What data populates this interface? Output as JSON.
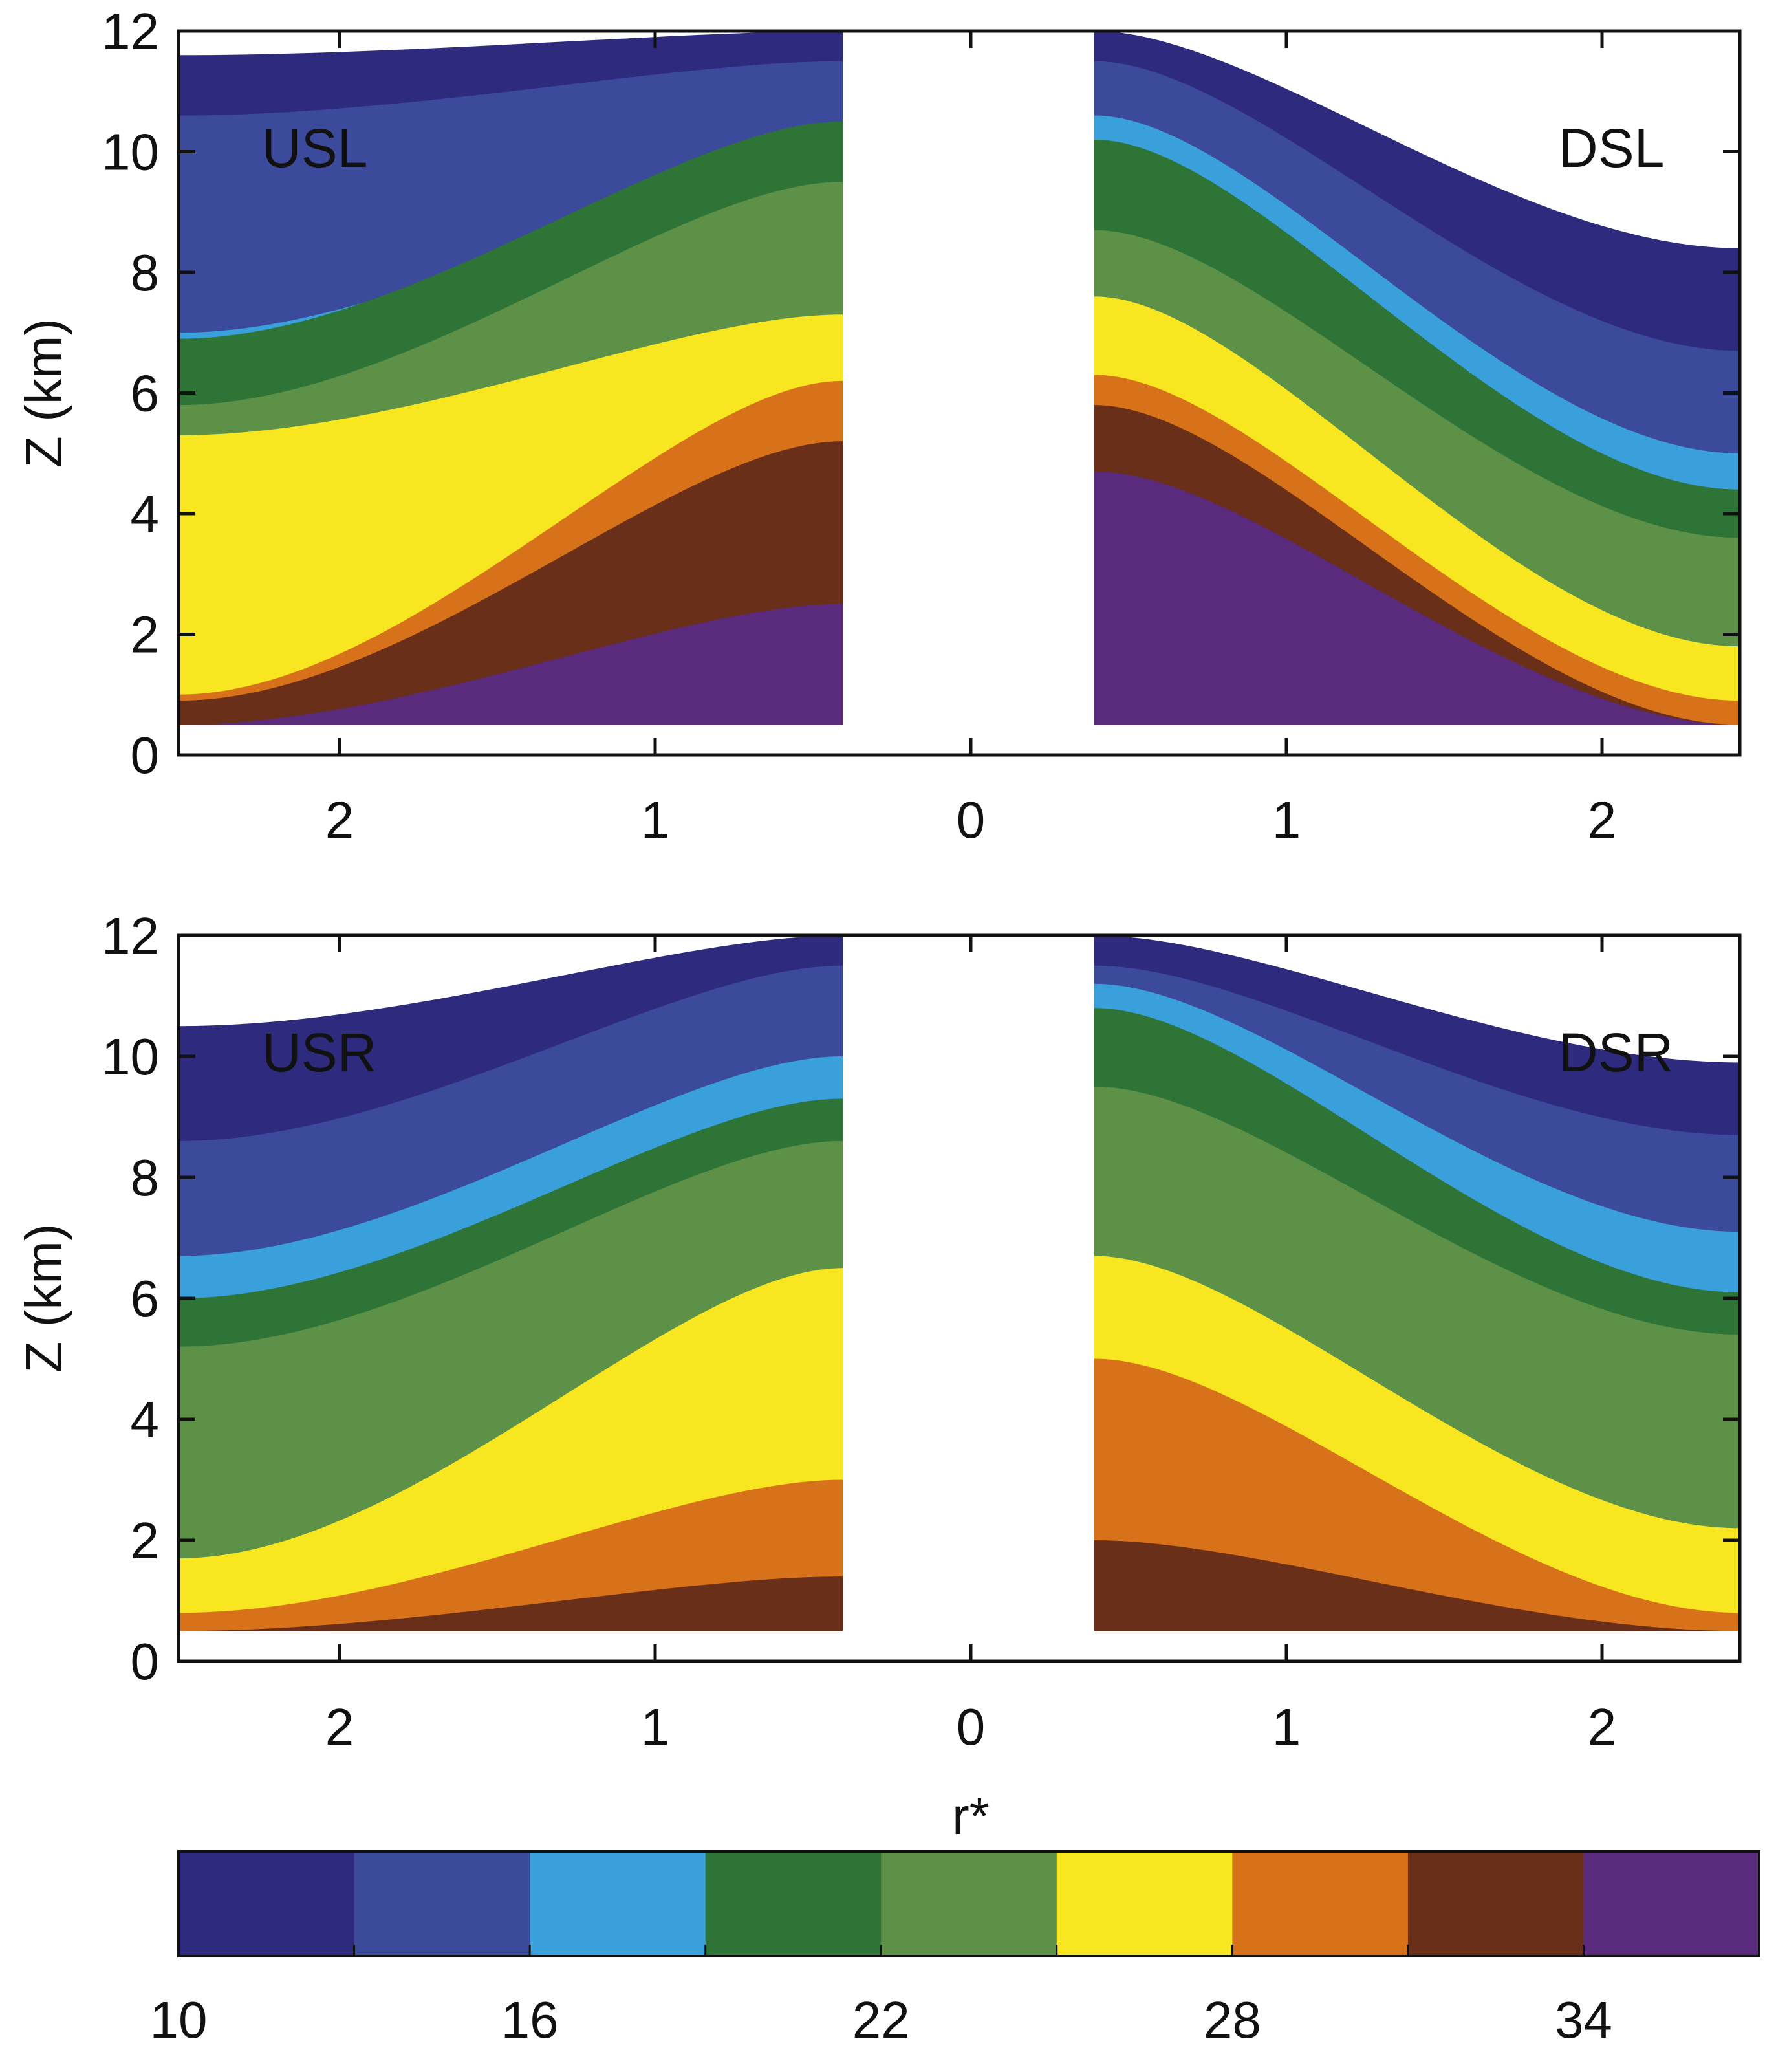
{
  "chart_data": {
    "type": "heatmap",
    "x_tick_labels": [
      "2",
      "1",
      "0",
      "1",
      "2"
    ],
    "x_tick_values": [
      2,
      1,
      0,
      1,
      2
    ],
    "y_tick_labels": [
      "0",
      "2",
      "4",
      "6",
      "8",
      "10",
      "12"
    ],
    "ylim": [
      0,
      12
    ],
    "ylabel": "Z (km)",
    "xlabel": "r*",
    "panels": [
      {
        "id": "top",
        "left_label": "USL",
        "right_label": "DSL",
        "left_bands": [
          [
            12.0,
            11.6
          ],
          [
            11.5,
            10.6
          ],
          [
            10.0,
            7.0
          ],
          [
            10.5,
            6.9
          ],
          [
            9.5,
            5.8
          ],
          [
            7.3,
            5.3
          ],
          [
            6.2,
            1.0
          ],
          [
            5.2,
            0.9
          ],
          [
            2.5,
            0.5
          ]
        ],
        "right_bands": [
          [
            12.0,
            8.4
          ],
          [
            11.5,
            6.7
          ],
          [
            10.6,
            5.0
          ],
          [
            10.2,
            4.4
          ],
          [
            8.7,
            3.6
          ],
          [
            7.6,
            1.8
          ],
          [
            6.3,
            0.9
          ],
          [
            5.8,
            0.5
          ],
          [
            4.7,
            0.5
          ]
        ]
      },
      {
        "id": "bottom",
        "left_label": "USR",
        "right_label": "DSR",
        "left_bands": [
          [
            12.0,
            10.5
          ],
          [
            11.5,
            8.6
          ],
          [
            10.0,
            6.7
          ],
          [
            9.3,
            6.0
          ],
          [
            8.6,
            5.2
          ],
          [
            6.5,
            1.7
          ],
          [
            3.0,
            0.8
          ],
          [
            1.4,
            0.5
          ],
          [
            0.0,
            0.0
          ]
        ],
        "right_bands": [
          [
            12.0,
            9.9
          ],
          [
            11.5,
            8.7
          ],
          [
            11.2,
            7.1
          ],
          [
            10.8,
            6.1
          ],
          [
            9.5,
            5.4
          ],
          [
            6.7,
            2.2
          ],
          [
            5.0,
            0.8
          ],
          [
            2.0,
            0.5
          ],
          [
            0.0,
            0.0
          ]
        ]
      }
    ],
    "colorbar": {
      "tick_labels": [
        "10",
        "16",
        "22",
        "28",
        "34"
      ],
      "colors": [
        "#2e2a7e",
        "#3c4a9c",
        "#3aa0dc",
        "#2e7437",
        "#5e9148",
        "#f8e620",
        "#d8721a",
        "#6a2f18",
        "#5a2a7c"
      ]
    }
  }
}
